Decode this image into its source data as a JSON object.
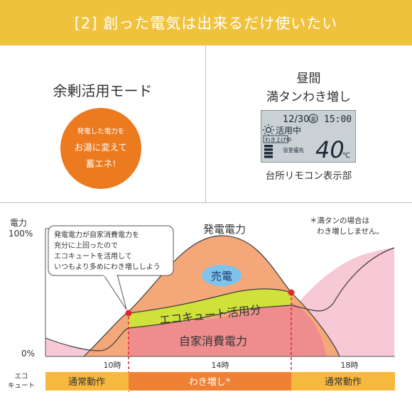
{
  "header": {
    "title": "[2] 創った電気は出来るだけ使いたい"
  },
  "left_panel": {
    "mode_title": "余剰活用モード",
    "badge": {
      "line1": "発電した電力を",
      "line2": "お湯に変えて",
      "line3": "蓄エネ!"
    }
  },
  "right_panel": {
    "title_line1": "昼間",
    "title_line2": "満タンわき増し",
    "remote_label": "台所リモコン表示部",
    "lcd": {
      "date": "12/30",
      "weekday": "金",
      "time": "15:00",
      "status": "活用中",
      "sub_status": "わき上げ中",
      "bath_priority": "浴室優先",
      "temperature": "40",
      "temp_unit": "℃"
    }
  },
  "graph": {
    "y_axis_label": "電力",
    "y_max_label": "100%",
    "y_min_label": "0%",
    "x_ticks": [
      "10時",
      "14時",
      "18時"
    ],
    "callout_lines": [
      "発電電力が自家消費電力を",
      "充分に上回ったので",
      "エコキュートを活用して",
      "いつもより多めにわき増ししよう"
    ],
    "note_line1": "＊満タンの場合は",
    "note_line2": "わき増ししません。",
    "labels": {
      "generation": "発電電力",
      "sell": "売電",
      "ecocute_use": "エコキュート活用分",
      "self_consumption": "自家消費電力"
    },
    "timeline": {
      "row_label_line1": "エコ",
      "row_label_line2": "キュート",
      "segments": [
        "通常動作",
        "わき増し*",
        "通常動作"
      ]
    },
    "colors": {
      "generation": "#f4a87a",
      "self_consumption": "#ef8d8e",
      "ecocute_band": "#cfe13a",
      "sell_bubble": "#7ec4ea",
      "night_demand": "#f7c9d6",
      "timeline_normal": "#f6b93d",
      "timeline_boost": "#ee8136",
      "marker": "#e4262c"
    }
  }
}
